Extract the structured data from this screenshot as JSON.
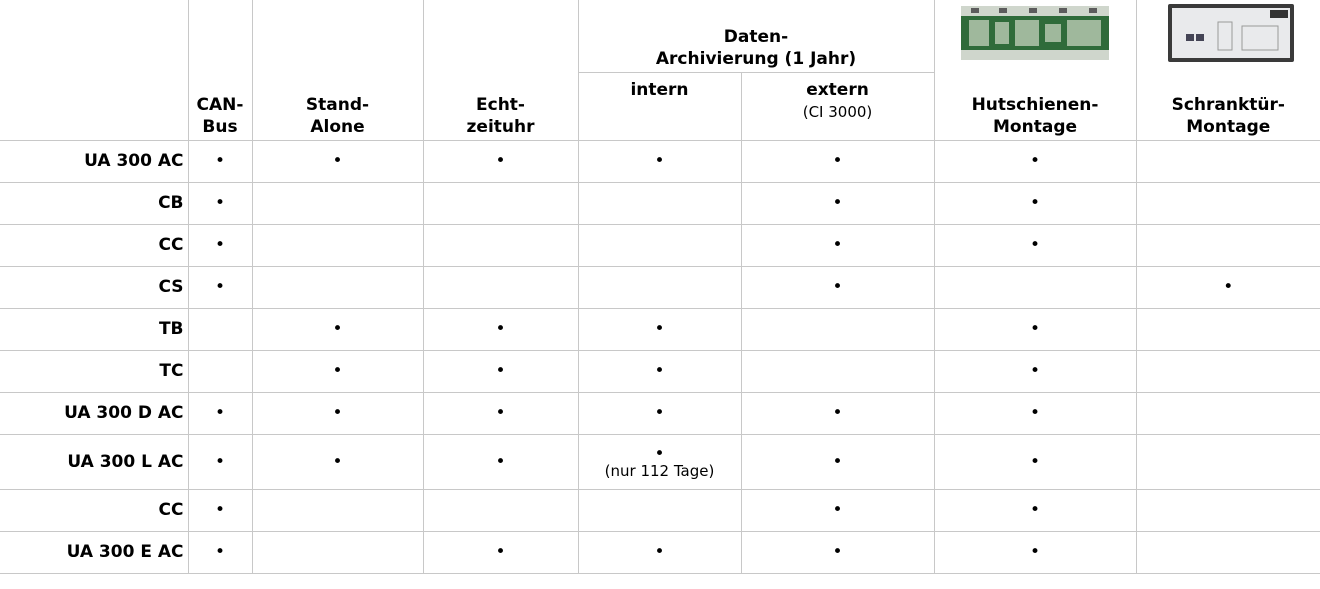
{
  "table": {
    "group_header": "Daten-Archivierung (1 Jahr)",
    "columns": [
      {
        "label": "CAN-Bus"
      },
      {
        "label": "Stand-Alone"
      },
      {
        "label": "Echt-zeituhr"
      },
      {
        "label": "intern"
      },
      {
        "label": "extern",
        "note": "(CI 3000)"
      },
      {
        "label": "Hutschienen-Montage"
      },
      {
        "label": "Schranktür-Montage"
      }
    ],
    "rows": [
      {
        "label": "UA 300 AC",
        "cells": [
          "•",
          "•",
          "•",
          "•",
          "•",
          "•",
          null
        ]
      },
      {
        "label": "CB",
        "cells": [
          "•",
          null,
          null,
          null,
          "•",
          "•",
          null
        ]
      },
      {
        "label": "CC",
        "cells": [
          "•",
          null,
          null,
          null,
          "•",
          "•",
          null
        ]
      },
      {
        "label": "CS",
        "cells": [
          "•",
          null,
          null,
          null,
          "•",
          null,
          "•"
        ]
      },
      {
        "label": "TB",
        "cells": [
          null,
          "•",
          "•",
          "•",
          null,
          "•",
          null
        ]
      },
      {
        "label": "TC",
        "cells": [
          null,
          "•",
          "•",
          "•",
          null,
          "•",
          null
        ]
      },
      {
        "label": "UA 300 D AC",
        "cells": [
          "•",
          "•",
          "•",
          "•",
          "•",
          "•",
          null
        ]
      },
      {
        "label": "UA 300 L AC",
        "cells": [
          "•",
          "•",
          "•",
          {
            "text": "•",
            "note": "(nur 112 Tage)"
          },
          "•",
          "•",
          null
        ]
      },
      {
        "label": "CC",
        "cells": [
          "•",
          null,
          null,
          null,
          "•",
          "•",
          null
        ]
      },
      {
        "label": "UA 300 E AC",
        "cells": [
          "•",
          null,
          "•",
          "•",
          "•",
          "•",
          null
        ]
      }
    ]
  }
}
